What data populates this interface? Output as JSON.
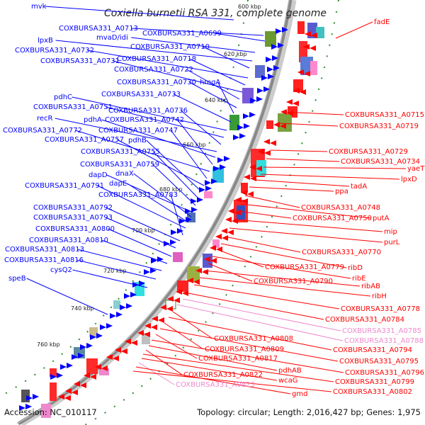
{
  "title": "Coxiella burnetii RSA 331, complete genome",
  "footer": {
    "accession": "Accession: NC_010117",
    "summary": "Topology: circular; Length: 2,016,427 bp; Genes: 1,975"
  },
  "colors": {
    "forward": "#0000ff",
    "reverse": "#ff0000",
    "pseudo": "#ee88cc",
    "backbone": "#888888",
    "tick": "#228b22"
  },
  "kbp_ticks": [
    "600 kbp",
    "620 kbp",
    "640 kbp",
    "660 kbp",
    "680 kbp",
    "700 kbp",
    "720 kbp",
    "740 kbp",
    "760 kbp"
  ],
  "labels_left": [
    "mvk",
    "COXBURSA331_A0713",
    "COXBURSA331_A0699",
    "mvaD/idi",
    "lpxB",
    "COXBURSA331_A0710",
    "COXBURSA331_A0732",
    "COXBURSA331_A0718",
    "COXBURSA331_A0731",
    "COXBURSA331_A0722",
    "COXBURSA331_A0730",
    "hmgA",
    "COXBURSA331_A0733",
    "pdhC",
    "COXBURSA331_A0751",
    "COXBURSA331_A0736",
    "recR",
    "pdhA",
    "COXBURSA331_A0742",
    "COXBURSA331_A0772",
    "COXBURSA331_A0747",
    "COXBURSA331_A0757",
    "pdhB",
    "COXBURSA331_A0755",
    "COXBURSA331_A0759",
    "dapD",
    "dnaX",
    "dapE",
    "COXBURSA331_A0791",
    "COXBURSA331_A0783",
    "COXBURSA331_A0792",
    "COXBURSA331_A0793",
    "COXBURSA331_A0800",
    "COXBURSA331_A0810",
    "COXBURSA331_A0813",
    "COXBURSA331_A0816",
    "cysQ2",
    "speB"
  ],
  "labels_right": [
    "fadE",
    "COXBURSA331_A0715",
    "COXBURSA331_A0719",
    "COXBURSA331_A0729",
    "COXBURSA331_A0734",
    "yaeT",
    "lpxD",
    "tadA",
    "ppa",
    "COXBURSA331_A0748",
    "putA",
    "COXBURSA331_A0750",
    "mip",
    "purL",
    "COXBURSA331_A0770",
    "ribD",
    "COXBURSA331_A0779",
    "ribE",
    "COXBURSA331_A0790",
    "ribAB",
    "ribH",
    "COXBURSA331_A0778",
    "COXBURSA331_A0784",
    "COXBURSA331_A0785",
    "COXBURSA331_A0788",
    "COXBURSA331_A0808",
    "COXBURSA331_A0794",
    "COXBURSA331_A0809",
    "COXBURSA331_A0795",
    "COXBURSA331_A0817",
    "COXBURSA331_A0796",
    "pdhAB",
    "COXBURSA331_A0822",
    "COXBURSA331_A0799",
    "wcaG",
    "COXBURSA331_A0823",
    "gmd",
    "COXBURSA331_A0802"
  ],
  "pseudo_labels": [
    "COXBURSA331_A0785",
    "COXBURSA331_A0788",
    "COXBURSA331_A0823"
  ]
}
